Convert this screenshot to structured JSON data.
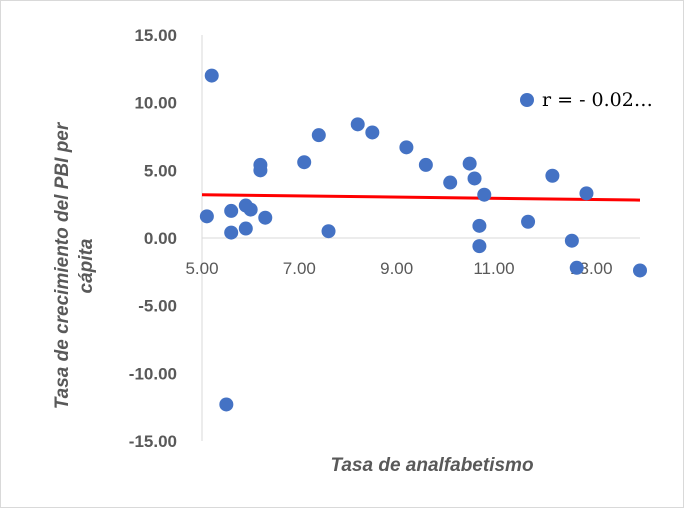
{
  "chart_data": {
    "type": "scatter",
    "xlabel": "Tasa de analfabetismo",
    "ylabel_lines": [
      "Tasa de crecimiento del PBI per",
      "cápita"
    ],
    "xlim": [
      5.0,
      14.0
    ],
    "ylim": [
      -15.0,
      15.0
    ],
    "x_ticks": [
      "5.00",
      "7.00",
      "9.00",
      "11.00",
      "13.00"
    ],
    "x_tick_values": [
      5,
      7,
      9,
      11,
      13
    ],
    "y_ticks": [
      "15.00",
      "10.00",
      "5.00",
      "0.00",
      "-5.00",
      "-10.00",
      "-15.00"
    ],
    "y_tick_values": [
      15,
      10,
      5,
      0,
      -5,
      -10,
      -15
    ],
    "grid": false,
    "legend": {
      "label": "r = - 0.02…",
      "position": "top-right"
    },
    "marker_color": "#4472c4",
    "trendline_color": "#ff0000",
    "trendline": {
      "x": [
        5.0,
        14.0
      ],
      "y": [
        3.2,
        2.8
      ]
    },
    "points": [
      {
        "x": 5.1,
        "y": 1.6
      },
      {
        "x": 5.2,
        "y": 12.0
      },
      {
        "x": 5.5,
        "y": -12.3
      },
      {
        "x": 5.6,
        "y": 2.0
      },
      {
        "x": 5.6,
        "y": 0.4
      },
      {
        "x": 5.9,
        "y": 0.7
      },
      {
        "x": 5.9,
        "y": 2.4
      },
      {
        "x": 6.0,
        "y": 2.1
      },
      {
        "x": 6.2,
        "y": 5.4
      },
      {
        "x": 6.2,
        "y": 5.0
      },
      {
        "x": 6.3,
        "y": 1.5
      },
      {
        "x": 7.1,
        "y": 5.6
      },
      {
        "x": 7.4,
        "y": 7.6
      },
      {
        "x": 7.6,
        "y": 0.5
      },
      {
        "x": 8.2,
        "y": 8.4
      },
      {
        "x": 8.5,
        "y": 7.8
      },
      {
        "x": 9.2,
        "y": 6.7
      },
      {
        "x": 9.6,
        "y": 5.4
      },
      {
        "x": 10.1,
        "y": 4.1
      },
      {
        "x": 10.5,
        "y": 5.5
      },
      {
        "x": 10.6,
        "y": 4.4
      },
      {
        "x": 10.7,
        "y": 0.9
      },
      {
        "x": 10.7,
        "y": -0.6
      },
      {
        "x": 10.8,
        "y": 3.2
      },
      {
        "x": 11.7,
        "y": 1.2
      },
      {
        "x": 12.2,
        "y": 4.6
      },
      {
        "x": 12.6,
        "y": -0.2
      },
      {
        "x": 12.7,
        "y": -2.2
      },
      {
        "x": 12.9,
        "y": 3.3
      },
      {
        "x": 14.0,
        "y": -2.4
      }
    ]
  }
}
